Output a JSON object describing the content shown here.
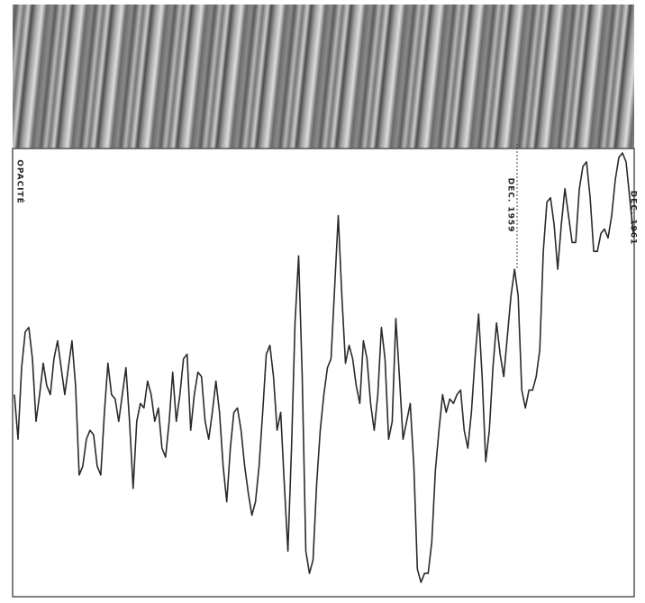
{
  "chart_data": {
    "type": "line",
    "y_label": "OPACITÉ",
    "annotations": [
      "DEC. 1959",
      "DEC. 1961"
    ],
    "color": "#2a2a2a",
    "ylim": [
      0,
      100
    ],
    "values": [
      45,
      35,
      51,
      59,
      60,
      53,
      39,
      45,
      52,
      47,
      45,
      53,
      57,
      51,
      45,
      51,
      57,
      47,
      27,
      29,
      35,
      37,
      36,
      29,
      27,
      41,
      52,
      45,
      44,
      39,
      45,
      51,
      39,
      24,
      39,
      43,
      42,
      48,
      45,
      39,
      42,
      33,
      31,
      39,
      50,
      39,
      45,
      53,
      54,
      37,
      45,
      50,
      49,
      39,
      35,
      41,
      48,
      41,
      29,
      21,
      33,
      41,
      42,
      37,
      29,
      23,
      18,
      21,
      29,
      41,
      54,
      56,
      49,
      37,
      41,
      25,
      10,
      33,
      61,
      76,
      49,
      10,
      5,
      8,
      25,
      37,
      45,
      51,
      53,
      69,
      85,
      67,
      52,
      56,
      53,
      47,
      43,
      57,
      53,
      43,
      37,
      45,
      60,
      53,
      35,
      39,
      62,
      49,
      35,
      39,
      43,
      29,
      6,
      3,
      5,
      5,
      12,
      28,
      37,
      45,
      41,
      44,
      43,
      45,
      46,
      37,
      33,
      41,
      53,
      63,
      49,
      30,
      37,
      51,
      61,
      54,
      49,
      58,
      67,
      73,
      67,
      46,
      42,
      46,
      46,
      49,
      55,
      77,
      88,
      89,
      83,
      73,
      83,
      91,
      85,
      79,
      79,
      91,
      96,
      97,
      89,
      77,
      77,
      81,
      82,
      80,
      85,
      93,
      98,
      99,
      97,
      89,
      81
    ]
  }
}
